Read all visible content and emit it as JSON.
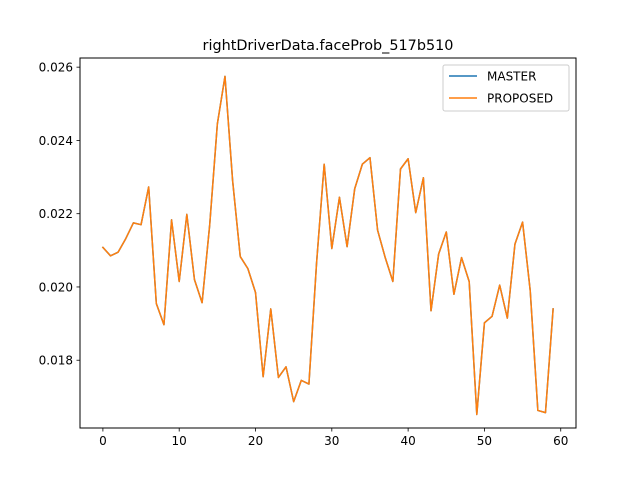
{
  "chart_data": {
    "type": "line",
    "title": "rightDriverData.faceProb_517b510",
    "xlabel": "",
    "ylabel": "",
    "xlim": [
      -3.0,
      62.0
    ],
    "ylim": [
      0.01615,
      0.02625
    ],
    "x_ticks": [
      0,
      10,
      20,
      30,
      40,
      50,
      60
    ],
    "x_tick_labels": [
      "0",
      "10",
      "20",
      "30",
      "40",
      "50",
      "60"
    ],
    "y_ticks": [
      0.018,
      0.02,
      0.022,
      0.024,
      0.026
    ],
    "y_tick_labels": [
      "0.018",
      "0.020",
      "0.022",
      "0.024",
      "0.026"
    ],
    "grid": false,
    "legend_position": "top-right",
    "series": [
      {
        "name": "MASTER",
        "color": "#1f77b4",
        "x": [
          0,
          1,
          2,
          3,
          4,
          5,
          6,
          7,
          8,
          9,
          10,
          11,
          12,
          13,
          14,
          15,
          16,
          17,
          18,
          19,
          20,
          21,
          22,
          23,
          24,
          25,
          26,
          27,
          28,
          29,
          30,
          31,
          32,
          33,
          34,
          35,
          36,
          37,
          38,
          39,
          40,
          41,
          42,
          43,
          44,
          45,
          46,
          47,
          48,
          49,
          50,
          51,
          52,
          53,
          54,
          55,
          56,
          57,
          58,
          59
        ],
        "values": [
          0.02108,
          0.02085,
          0.02095,
          0.02132,
          0.02175,
          0.0217,
          0.02273,
          0.01955,
          0.01897,
          0.02183,
          0.02015,
          0.02198,
          0.0202,
          0.01957,
          0.0217,
          0.02445,
          0.02575,
          0.0229,
          0.02083,
          0.0205,
          0.01985,
          0.01755,
          0.0194,
          0.01753,
          0.01782,
          0.01687,
          0.01745,
          0.01735,
          0.02065,
          0.02335,
          0.02105,
          0.02245,
          0.0211,
          0.02268,
          0.02335,
          0.02353,
          0.02155,
          0.0208,
          0.02015,
          0.02322,
          0.0235,
          0.02203,
          0.02298,
          0.01935,
          0.0209,
          0.0215,
          0.0198,
          0.0208,
          0.02015,
          0.01652,
          0.01902,
          0.0192,
          0.02005,
          0.01915,
          0.02117,
          0.02177,
          0.0199,
          0.01663,
          0.01657,
          0.0194
        ]
      },
      {
        "name": "PROPOSED",
        "color": "#ff7f0e",
        "x": [
          0,
          1,
          2,
          3,
          4,
          5,
          6,
          7,
          8,
          9,
          10,
          11,
          12,
          13,
          14,
          15,
          16,
          17,
          18,
          19,
          20,
          21,
          22,
          23,
          24,
          25,
          26,
          27,
          28,
          29,
          30,
          31,
          32,
          33,
          34,
          35,
          36,
          37,
          38,
          39,
          40,
          41,
          42,
          43,
          44,
          45,
          46,
          47,
          48,
          49,
          50,
          51,
          52,
          53,
          54,
          55,
          56,
          57,
          58,
          59
        ],
        "values": [
          0.02108,
          0.02085,
          0.02095,
          0.02132,
          0.02175,
          0.0217,
          0.02273,
          0.01955,
          0.01897,
          0.02183,
          0.02015,
          0.02198,
          0.0202,
          0.01957,
          0.0217,
          0.02445,
          0.02575,
          0.0229,
          0.02083,
          0.0205,
          0.01985,
          0.01755,
          0.0194,
          0.01753,
          0.01782,
          0.01687,
          0.01745,
          0.01735,
          0.02065,
          0.02335,
          0.02105,
          0.02245,
          0.0211,
          0.02268,
          0.02335,
          0.02353,
          0.02155,
          0.0208,
          0.02015,
          0.02322,
          0.0235,
          0.02203,
          0.02298,
          0.01935,
          0.0209,
          0.0215,
          0.0198,
          0.0208,
          0.02015,
          0.01652,
          0.01902,
          0.0192,
          0.02005,
          0.01915,
          0.02117,
          0.02177,
          0.0199,
          0.01663,
          0.01657,
          0.0194
        ]
      }
    ]
  }
}
